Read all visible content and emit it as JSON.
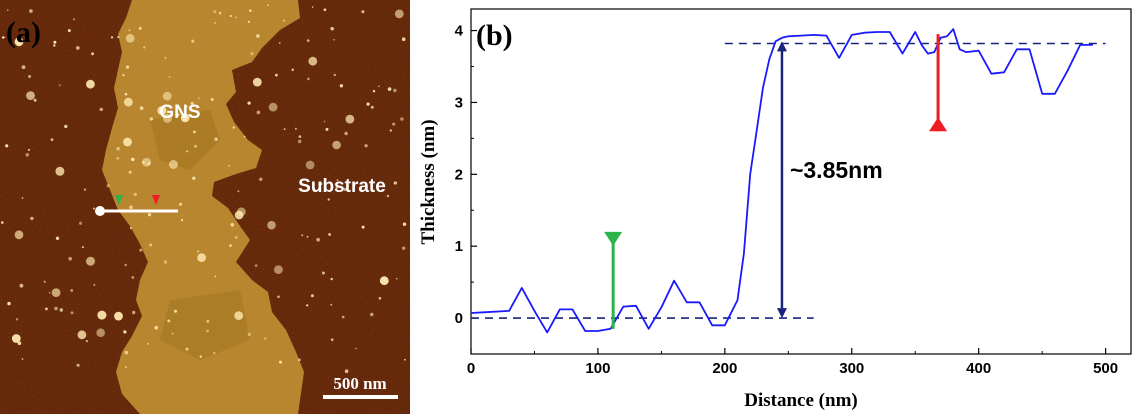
{
  "panel_a": {
    "label": "(a)",
    "labels": {
      "gns": "GNS",
      "substrate": "Substrate"
    },
    "scale_bar": "500 nm",
    "colors": {
      "substrate": "#5a1a05",
      "gns": "#b8862e",
      "line": "#ffffff"
    }
  },
  "chart_data": {
    "type": "line",
    "panel_label": "(b)",
    "title": "",
    "xlabel": "Distance (nm)",
    "ylabel": "Thickness (nm)",
    "xlim": [
      0,
      520
    ],
    "ylim": [
      -0.5,
      4.3
    ],
    "x_ticks": [
      0,
      100,
      200,
      300,
      400,
      500
    ],
    "y_ticks": [
      0,
      1,
      2,
      3,
      4
    ],
    "grid": false,
    "series": [
      {
        "color": "#1a1aff",
        "x": [
          0,
          10,
          30,
          40,
          50,
          60,
          70,
          80,
          90,
          100,
          110,
          120,
          130,
          140,
          150,
          160,
          170,
          180,
          190,
          200,
          210,
          215,
          220,
          225,
          230,
          235,
          240,
          245,
          250,
          260,
          270,
          280,
          290,
          300,
          310,
          320,
          330,
          340,
          350,
          355,
          360,
          365,
          370,
          375,
          380,
          385,
          390,
          400,
          410,
          420,
          430,
          440,
          450,
          460,
          470,
          480,
          490
        ],
        "y": [
          0.07,
          0.08,
          0.1,
          0.42,
          0.1,
          -0.2,
          0.12,
          0.12,
          -0.18,
          -0.18,
          -0.15,
          0.16,
          0.17,
          -0.15,
          0.15,
          0.52,
          0.22,
          0.22,
          -0.1,
          -0.1,
          0.25,
          0.9,
          2.0,
          2.6,
          3.2,
          3.6,
          3.85,
          3.9,
          3.92,
          3.93,
          3.94,
          3.93,
          3.62,
          3.94,
          3.97,
          3.98,
          3.98,
          3.68,
          3.98,
          3.8,
          3.68,
          3.7,
          3.9,
          3.92,
          4.02,
          3.74,
          3.7,
          3.72,
          3.4,
          3.42,
          3.74,
          3.74,
          3.12,
          3.12,
          3.44,
          3.8,
          3.8
        ]
      }
    ],
    "reference_lines": {
      "lower": 0.0,
      "upper": 3.82,
      "color": "#1a237e"
    },
    "measurement": {
      "x": 245,
      "from": 0.0,
      "to": 3.85,
      "label": "~3.85nm",
      "color": "#1a237e"
    },
    "markers": [
      {
        "name": "green",
        "color": "#2eb34a",
        "x": 112,
        "y_top": 1.2,
        "y_bottom": -0.15
      },
      {
        "name": "red",
        "color": "#ee1c25",
        "x": 368,
        "y_top": 3.95,
        "y_bottom": 2.6
      }
    ]
  }
}
